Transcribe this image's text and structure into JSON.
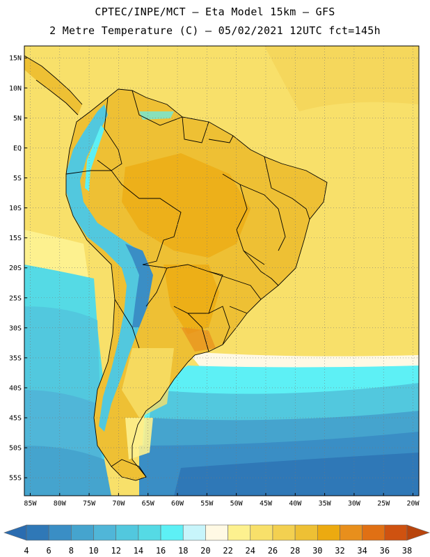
{
  "header": {
    "line1": "CPTEC/INPE/MCT –  Eta Model 15km – GFS",
    "line2": "2 Metre Temperature (C) – 05/02/2021 12UTC fct=145h"
  },
  "map": {
    "lon_min": -86,
    "lon_max": -19,
    "lat_min": -58,
    "lat_max": 17,
    "lat_ticks": [
      {
        "value": 15,
        "label": "15N"
      },
      {
        "value": 10,
        "label": "10N"
      },
      {
        "value": 5,
        "label": "5N"
      },
      {
        "value": 0,
        "label": "EQ"
      },
      {
        "value": -5,
        "label": "5S"
      },
      {
        "value": -10,
        "label": "10S"
      },
      {
        "value": -15,
        "label": "15S"
      },
      {
        "value": -20,
        "label": "20S"
      },
      {
        "value": -25,
        "label": "25S"
      },
      {
        "value": -30,
        "label": "30S"
      },
      {
        "value": -35,
        "label": "35S"
      },
      {
        "value": -40,
        "label": "40S"
      },
      {
        "value": -45,
        "label": "45S"
      },
      {
        "value": -50,
        "label": "50S"
      },
      {
        "value": -55,
        "label": "55S"
      }
    ],
    "lon_ticks": [
      {
        "value": -85,
        "label": "85W"
      },
      {
        "value": -80,
        "label": "80W"
      },
      {
        "value": -75,
        "label": "75W"
      },
      {
        "value": -70,
        "label": "70W"
      },
      {
        "value": -65,
        "label": "65W"
      },
      {
        "value": -60,
        "label": "60W"
      },
      {
        "value": -55,
        "label": "55W"
      },
      {
        "value": -50,
        "label": "50W"
      },
      {
        "value": -45,
        "label": "45W"
      },
      {
        "value": -40,
        "label": "40W"
      },
      {
        "value": -35,
        "label": "35W"
      },
      {
        "value": -30,
        "label": "30W"
      },
      {
        "value": -25,
        "label": "25W"
      },
      {
        "value": -20,
        "label": "20W"
      }
    ]
  },
  "colorbar": {
    "labels": [
      "4",
      "6",
      "8",
      "10",
      "12",
      "14",
      "16",
      "18",
      "20",
      "22",
      "24",
      "26",
      "28",
      "30",
      "32",
      "34",
      "36",
      "38"
    ],
    "colors": [
      "#2f78b7",
      "#3a8ec5",
      "#45a4ce",
      "#50b6d8",
      "#52c8de",
      "#55dae5",
      "#5df0f5",
      "#c8f5fb",
      "#fff9e4",
      "#fdf18f",
      "#f8e06a",
      "#f3d050",
      "#eec034",
      "#ecaa10",
      "#e88f1c",
      "#e07014",
      "#cf5210"
    ],
    "low_cap_color": "#2a6cb0",
    "high_cap_color": "#b8440c"
  }
}
